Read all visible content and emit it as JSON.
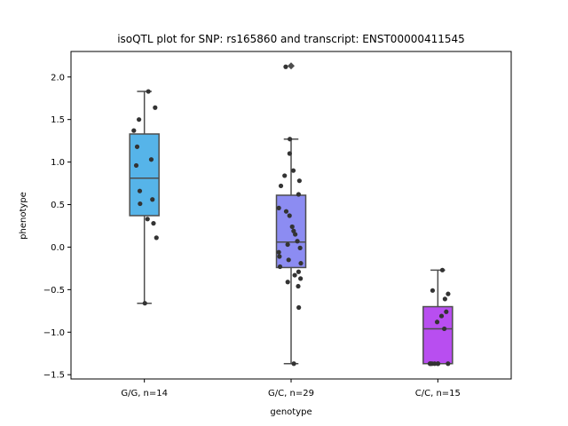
{
  "chart_data": {
    "type": "box",
    "title": "isoQTL plot for SNP: rs165860 and transcript: ENST00000411545",
    "xlabel": "genotype",
    "ylabel": "phenotype",
    "ylim": [
      -1.55,
      2.3
    ],
    "yticks": [
      -1.5,
      -1.0,
      -0.5,
      0.0,
      0.5,
      1.0,
      1.5,
      2.0
    ],
    "ytick_labels": [
      "−1.5",
      "−1.0",
      "−0.5",
      "0.0",
      "0.5",
      "1.0",
      "1.5",
      "2.0"
    ],
    "grid": false,
    "groups": [
      {
        "label": "G/G, n=14",
        "color": "#56b4e9",
        "box": {
          "whisker_low": -0.66,
          "q1": 0.37,
          "median": 0.81,
          "q3": 1.33,
          "whisker_high": 1.83
        },
        "outliers": [],
        "points": [
          1.83,
          1.64,
          1.5,
          1.37,
          1.18,
          1.03,
          0.96,
          0.66,
          0.56,
          0.51,
          0.33,
          0.28,
          0.11,
          -0.66
        ]
      },
      {
        "label": "G/C, n=29",
        "color": "#8c8cf2",
        "box": {
          "whisker_low": -1.37,
          "q1": -0.24,
          "median": 0.06,
          "q3": 0.61,
          "whisker_high": 1.27
        },
        "outliers": [
          2.13
        ],
        "points": [
          2.12,
          1.27,
          1.1,
          0.9,
          0.84,
          0.78,
          0.72,
          0.62,
          0.46,
          0.42,
          0.37,
          0.24,
          0.19,
          0.15,
          0.07,
          0.03,
          -0.01,
          -0.06,
          -0.11,
          -0.15,
          -0.19,
          -0.23,
          -0.29,
          -0.33,
          -0.37,
          -0.41,
          -0.46,
          -0.71,
          -1.37
        ]
      },
      {
        "label": "C/C, n=15",
        "color": "#b84ef0",
        "box": {
          "whisker_low": -1.37,
          "q1": -1.37,
          "median": -0.96,
          "q3": -0.7,
          "whisker_high": -0.27
        },
        "outliers": [],
        "points": [
          -0.27,
          -0.51,
          -0.55,
          -0.61,
          -0.76,
          -0.81,
          -0.88,
          -0.96,
          -1.37,
          -1.37,
          -1.37,
          -1.37,
          -1.37,
          -1.37,
          -1.37
        ]
      }
    ]
  }
}
